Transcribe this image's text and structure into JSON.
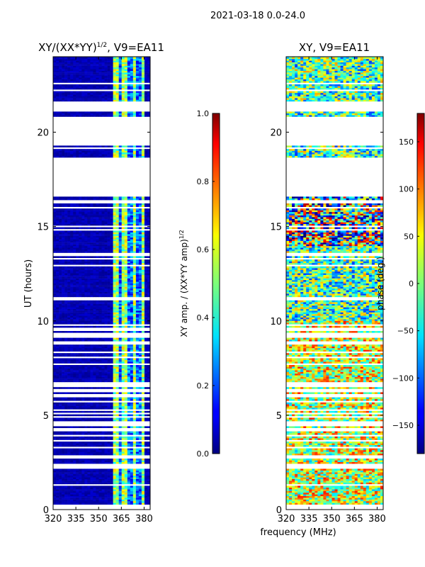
{
  "figure": {
    "suptitle": "2021-03-18 0.0-24.0",
    "xlabel": "frequency (MHz)"
  },
  "chart_data": [
    {
      "type": "heatmap",
      "title_main": "XY/(XX*YY)",
      "title_sup": "1/2",
      "title_tail": ", V9=EA11",
      "xlabel": "",
      "ylabel": "UT (hours)",
      "x_ticks": [
        "320",
        "335",
        "350",
        "365",
        "380"
      ],
      "x_tick_values": [
        320,
        335,
        350,
        365,
        380
      ],
      "y_ticks": [
        "0",
        "5",
        "10",
        "15",
        "20"
      ],
      "y_tick_values": [
        0,
        5,
        10,
        15,
        20
      ],
      "xlim": [
        320,
        384
      ],
      "ylim": [
        0,
        24
      ],
      "gaps_hours": [
        [
          16.6,
          18.7
        ],
        [
          19.4,
          20.8
        ],
        [
          21.1,
          21.6
        ]
      ],
      "colorbar": {
        "label_main": "XY amp. / (XX*YY amp)",
        "label_sup": "1/2",
        "range": [
          0.0,
          1.0
        ],
        "ticks": [
          "0.0",
          "0.2",
          "0.4",
          "0.6",
          "0.8",
          "1.0"
        ],
        "tick_values": [
          0.0,
          0.2,
          0.4,
          0.6,
          0.8,
          1.0
        ],
        "colormap": "jet"
      }
    },
    {
      "type": "heatmap",
      "title": "XY, V9=EA11",
      "xlabel": "",
      "ylabel": "",
      "x_ticks": [
        "320",
        "335",
        "350",
        "365",
        "380"
      ],
      "x_tick_values": [
        320,
        335,
        350,
        365,
        380
      ],
      "y_ticks": [
        "0",
        "5",
        "10",
        "15",
        "20"
      ],
      "y_tick_values": [
        0,
        5,
        10,
        15,
        20
      ],
      "xlim": [
        320,
        384
      ],
      "ylim": [
        0,
        24
      ],
      "gaps_hours": [
        [
          16.6,
          18.7
        ],
        [
          19.4,
          20.8
        ],
        [
          21.1,
          21.6
        ]
      ],
      "colorbar": {
        "label": "phase (deg.)",
        "range": [
          -180,
          180
        ],
        "ticks": [
          "−150",
          "−100",
          "−50",
          "0",
          "50",
          "100",
          "150"
        ],
        "tick_values": [
          -150,
          -100,
          -50,
          0,
          50,
          100,
          150
        ],
        "colormap": "jet"
      }
    }
  ]
}
